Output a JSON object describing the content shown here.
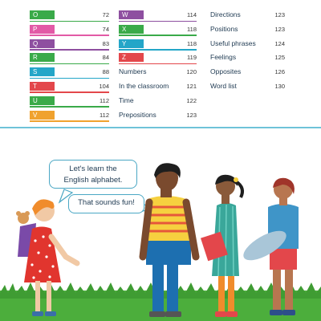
{
  "column1": [
    {
      "letter": "O",
      "page": "72",
      "color": "#3aaa49"
    },
    {
      "letter": "P",
      "page": "74",
      "color": "#e25aa6"
    },
    {
      "letter": "Q",
      "page": "83",
      "color": "#8e4fa0"
    },
    {
      "letter": "R",
      "page": "84",
      "color": "#3aaa49"
    },
    {
      "letter": "S",
      "page": "88",
      "color": "#24a6c8"
    },
    {
      "letter": "T",
      "page": "104",
      "color": "#e3474b"
    },
    {
      "letter": "U",
      "page": "112",
      "color": "#3aaa49"
    },
    {
      "letter": "V",
      "page": "112",
      "color": "#f0a22e"
    }
  ],
  "column2_letters": [
    {
      "letter": "W",
      "page": "114",
      "color": "#8e4fa0"
    },
    {
      "letter": "X",
      "page": "118",
      "color": "#3aaa49"
    },
    {
      "letter": "Y",
      "page": "118",
      "color": "#24a6c8"
    },
    {
      "letter": "Z",
      "page": "119",
      "color": "#e3474b"
    }
  ],
  "column2_topics": [
    {
      "label": "Numbers",
      "page": "120"
    },
    {
      "label": "In the classroom",
      "page": "121"
    },
    {
      "label": "Time",
      "page": "122"
    },
    {
      "label": "Prepositions",
      "page": "123"
    }
  ],
  "column3_topics": [
    {
      "label": "Directions",
      "page": "123"
    },
    {
      "label": "Positions",
      "page": "123"
    },
    {
      "label": "Useful phrases",
      "page": "124"
    },
    {
      "label": "Feelings",
      "page": "125"
    },
    {
      "label": "Opposites",
      "page": "126"
    },
    {
      "label": "Word list",
      "page": "130"
    }
  ],
  "speech": {
    "bubble1": "Let's learn the English alphabet.",
    "bubble1_line1": "Let's learn the",
    "bubble1_line2": "English alphabet.",
    "bubble2": "That sounds fun!"
  }
}
